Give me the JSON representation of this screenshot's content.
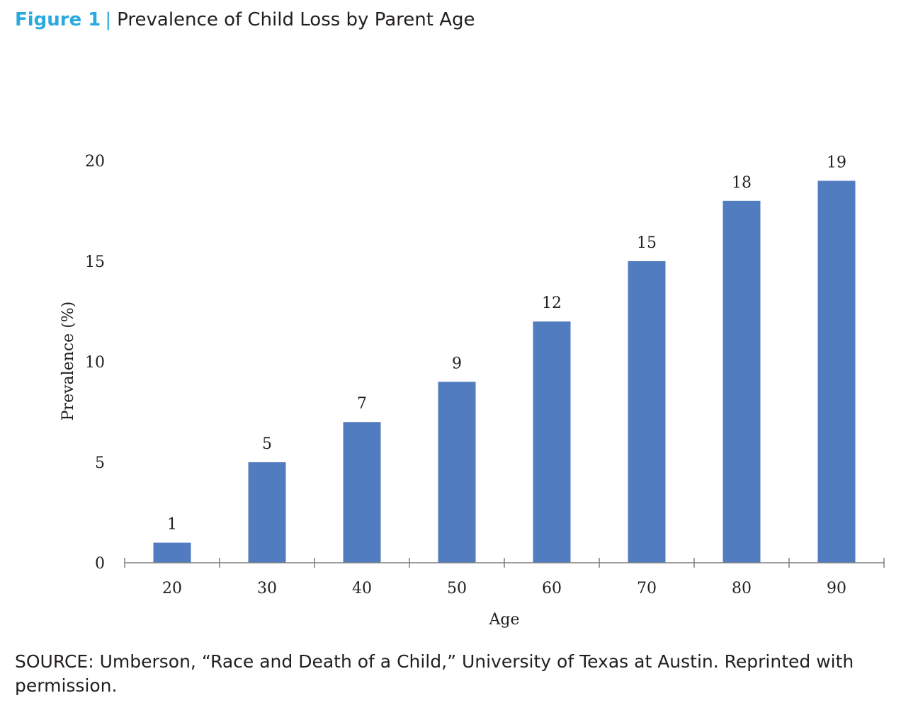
{
  "figure": {
    "label": "Figure 1",
    "separator": "|",
    "title": "Prevalence of Child Loss by Parent Age"
  },
  "chart_data": {
    "type": "bar",
    "categories": [
      "20",
      "30",
      "40",
      "50",
      "60",
      "70",
      "80",
      "90"
    ],
    "values": [
      1,
      5,
      7,
      9,
      12,
      15,
      18,
      19
    ],
    "data_labels": [
      "1",
      "5",
      "7",
      "9",
      "12",
      "15",
      "18",
      "19"
    ],
    "xlabel": "Age",
    "ylabel": "Prevalence (%)",
    "yticks": [
      0,
      5,
      10,
      15,
      20
    ],
    "ylim": [
      0,
      20
    ],
    "grid": false,
    "bar_color": "#527cc0",
    "axis_color": "#7f7f7f"
  },
  "source": "SOURCE: Umberson, “Race and Death of a Child,” University of Texas at Austin. Reprinted with permission."
}
